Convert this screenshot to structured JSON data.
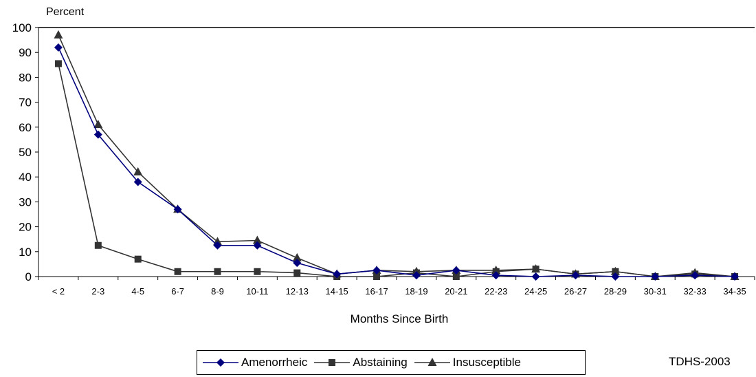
{
  "chart_data": {
    "type": "line",
    "y_unit_label": "Percent",
    "xlabel": "Months Since Birth",
    "ylim": [
      0,
      100
    ],
    "yticks": [
      0,
      10,
      20,
      30,
      40,
      50,
      60,
      70,
      80,
      90,
      100
    ],
    "categories": [
      "< 2",
      "2-3",
      "4-5",
      "6-7",
      "8-9",
      "10-11",
      "12-13",
      "14-15",
      "16-17",
      "18-19",
      "20-21",
      "22-23",
      "24-25",
      "26-27",
      "28-29",
      "30-31",
      "32-33",
      "34-35"
    ],
    "series": [
      {
        "name": "Amenorrheic",
        "color": "#00007f",
        "marker": "diamond",
        "values": [
          92,
          57,
          38,
          27,
          12.5,
          12.5,
          5.5,
          1,
          2.5,
          0.5,
          2.5,
          0.5,
          0,
          0.5,
          0,
          0,
          0.5,
          0
        ]
      },
      {
        "name": "Abstaining",
        "color": "#333333",
        "marker": "square",
        "values": [
          85.5,
          12.5,
          7,
          2,
          2,
          2,
          1.5,
          0,
          0,
          1.5,
          0,
          2,
          3,
          1,
          2,
          0,
          1,
          0
        ]
      },
      {
        "name": "Insusceptible",
        "color": "#333333",
        "marker": "triangle",
        "values": [
          97,
          61,
          42,
          27,
          14,
          14.5,
          7.5,
          1,
          2.5,
          2,
          2.5,
          2.5,
          3,
          1,
          2,
          0,
          1.5,
          0
        ]
      }
    ],
    "legend_position": "bottom-center",
    "grid": false
  },
  "source_note": "TDHS-2003"
}
